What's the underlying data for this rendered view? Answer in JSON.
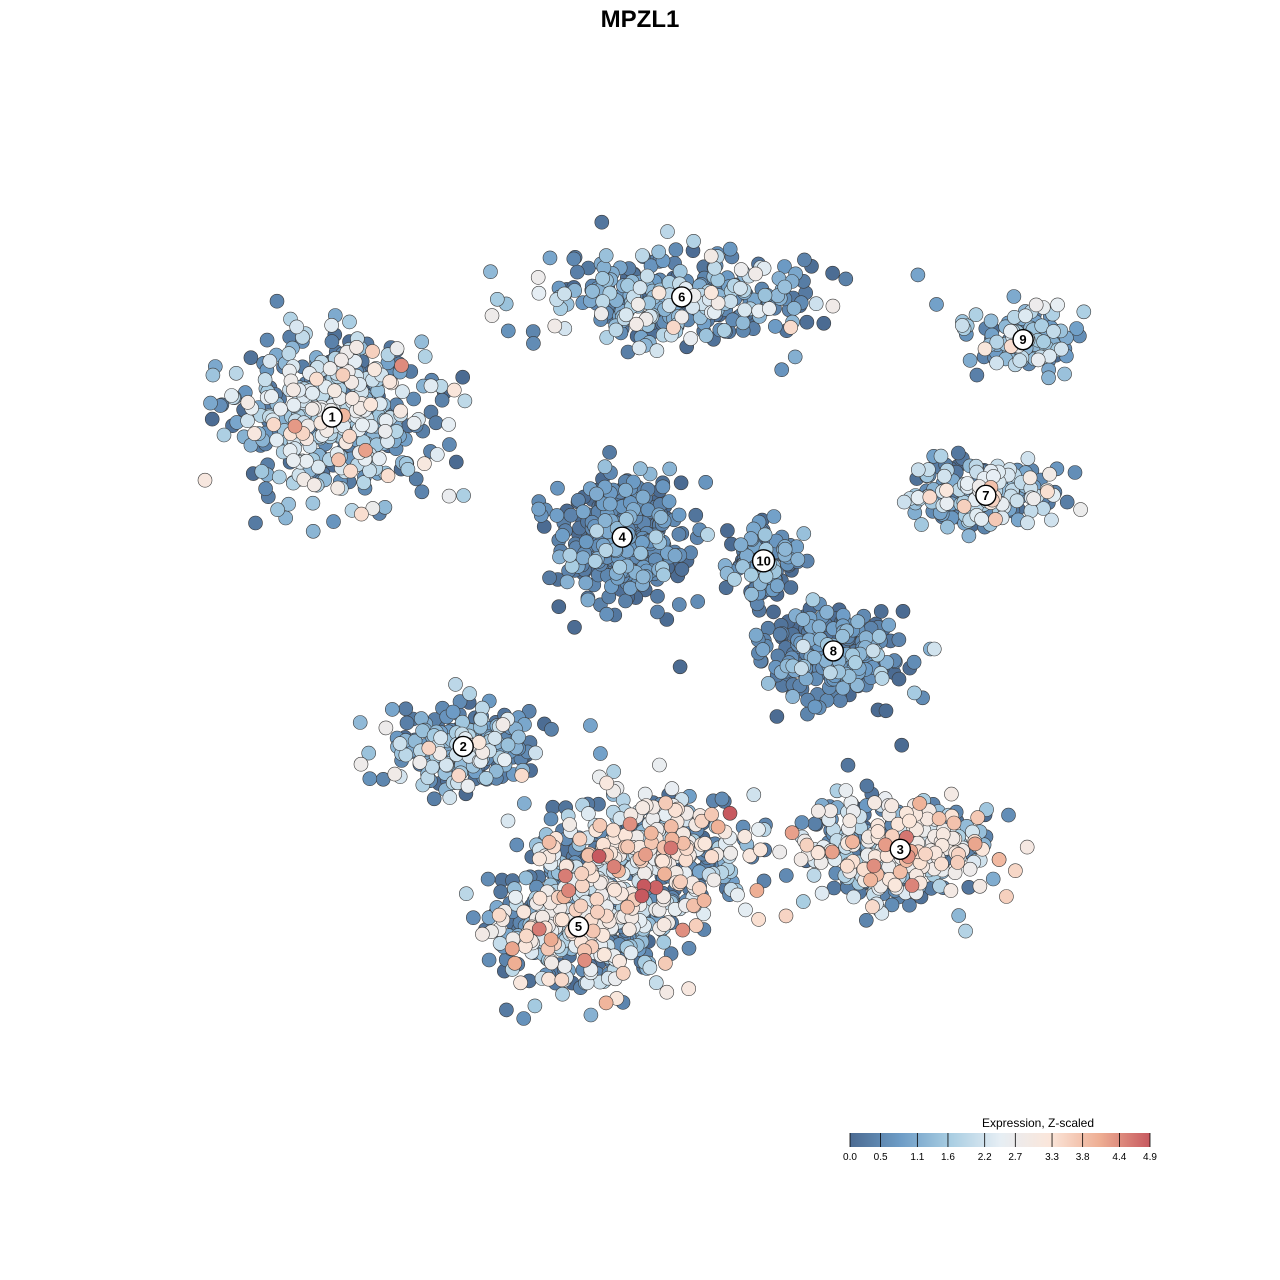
{
  "chart_data": {
    "type": "scatter",
    "title": "MPZL1",
    "xlabel": "",
    "ylabel": "",
    "xlim": [
      0,
      1
    ],
    "ylim": [
      0,
      1
    ],
    "grid": false,
    "legend": {
      "title": "Expression, Z-scaled",
      "placement": "bottom-right",
      "range": [
        0.0,
        4.9
      ],
      "ticks": [
        "0.0",
        "0.5",
        "1.1",
        "1.6",
        "2.2",
        "2.7",
        "3.3",
        "3.8",
        "4.4",
        "4.9"
      ],
      "tick_values": [
        0.0,
        0.5,
        1.1,
        1.6,
        2.2,
        2.7,
        3.3,
        3.8,
        4.4,
        4.9
      ],
      "colors": [
        "#4b6b92",
        "#6d9cc6",
        "#a8cde2",
        "#e6eef4",
        "#fbe6da",
        "#eeae93",
        "#c7595f"
      ]
    },
    "clusters": [
      {
        "label": "1",
        "x": 0.142,
        "y": 0.745,
        "mean": 1.6,
        "sd": 0.9,
        "n": 520
      },
      {
        "label": "2",
        "x": 0.283,
        "y": 0.383,
        "mean": 1.2,
        "sd": 0.9,
        "n": 240
      },
      {
        "label": "3",
        "x": 0.753,
        "y": 0.27,
        "mean": 2.3,
        "sd": 0.9,
        "n": 380
      },
      {
        "label": "4",
        "x": 0.454,
        "y": 0.613,
        "mean": 0.5,
        "sd": 0.6,
        "n": 360
      },
      {
        "label": "5",
        "x": 0.407,
        "y": 0.185,
        "mean": 2.0,
        "sd": 1.0,
        "n": 470
      },
      {
        "label": "6",
        "x": 0.518,
        "y": 0.877,
        "mean": 1.2,
        "sd": 0.9,
        "n": 330
      },
      {
        "label": "7",
        "x": 0.845,
        "y": 0.659,
        "mean": 1.5,
        "sd": 0.9,
        "n": 210
      },
      {
        "label": "8",
        "x": 0.681,
        "y": 0.488,
        "mean": 0.6,
        "sd": 0.7,
        "n": 260
      },
      {
        "label": "9",
        "x": 0.885,
        "y": 0.83,
        "mean": 1.4,
        "sd": 0.9,
        "n": 130
      },
      {
        "label": "10",
        "x": 0.606,
        "y": 0.587,
        "mean": 0.6,
        "sd": 0.6,
        "n": 120
      },
      {
        "label": "",
        "x": 0.482,
        "y": 0.265,
        "mean": 2.4,
        "sd": 1.0,
        "n": 420
      }
    ]
  }
}
